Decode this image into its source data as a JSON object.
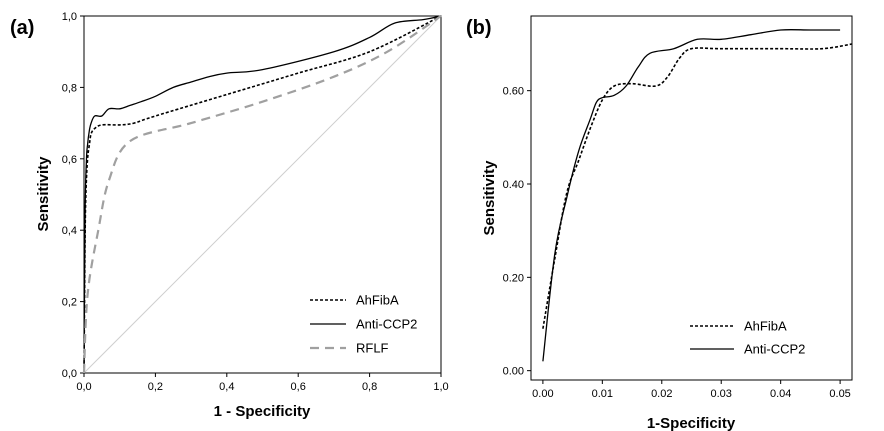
{
  "chart_data": [
    {
      "type": "line",
      "panel_label": "(a)",
      "xlabel": "1 - Specificity",
      "ylabel": "Sensitivity",
      "xlim": [
        0,
        1
      ],
      "ylim": [
        0,
        1
      ],
      "x_ticks": [
        "0,0",
        "0,2",
        "0,4",
        "0,6",
        "0,8",
        "1,0"
      ],
      "y_ticks": [
        "0,0",
        "0,2",
        "0,4",
        "0,6",
        "0,8",
        "1,0"
      ],
      "legend_position": "bottom-right",
      "series": [
        {
          "name": "AhFibA",
          "dash": "dotted",
          "color": "#000000",
          "points": [
            [
              0,
              0
            ],
            [
              0.003,
              0.38
            ],
            [
              0.006,
              0.52
            ],
            [
              0.01,
              0.6
            ],
            [
              0.015,
              0.64
            ],
            [
              0.02,
              0.67
            ],
            [
              0.03,
              0.685
            ],
            [
              0.05,
              0.695
            ],
            [
              0.1,
              0.695
            ],
            [
              0.14,
              0.7
            ],
            [
              0.2,
              0.72
            ],
            [
              0.4,
              0.78
            ],
            [
              0.6,
              0.84
            ],
            [
              0.8,
              0.9
            ],
            [
              1.0,
              1.0
            ]
          ]
        },
        {
          "name": "Anti-CCP2",
          "dash": "solid",
          "color": "#000000",
          "points": [
            [
              0,
              0
            ],
            [
              0.003,
              0.45
            ],
            [
              0.007,
              0.6
            ],
            [
              0.01,
              0.64
            ],
            [
              0.015,
              0.68
            ],
            [
              0.02,
              0.7
            ],
            [
              0.03,
              0.72
            ],
            [
              0.05,
              0.72
            ],
            [
              0.07,
              0.74
            ],
            [
              0.1,
              0.74
            ],
            [
              0.13,
              0.75
            ],
            [
              0.16,
              0.76
            ],
            [
              0.2,
              0.775
            ],
            [
              0.25,
              0.8
            ],
            [
              0.3,
              0.815
            ],
            [
              0.35,
              0.83
            ],
            [
              0.4,
              0.84
            ],
            [
              0.5,
              0.85
            ],
            [
              0.7,
              0.9
            ],
            [
              0.8,
              0.94
            ],
            [
              0.87,
              0.98
            ],
            [
              0.95,
              0.99
            ],
            [
              1.0,
              1.0
            ]
          ]
        },
        {
          "name": "RFLF",
          "dash": "dashed",
          "color": "#a0a0a0",
          "points": [
            [
              0,
              0
            ],
            [
              0.01,
              0.22
            ],
            [
              0.04,
              0.4
            ],
            [
              0.07,
              0.54
            ],
            [
              0.13,
              0.65
            ],
            [
              0.3,
              0.7
            ],
            [
              0.5,
              0.76
            ],
            [
              0.7,
              0.83
            ],
            [
              0.85,
              0.9
            ],
            [
              1.0,
              1.0
            ]
          ]
        }
      ]
    },
    {
      "type": "line",
      "panel_label": "(b)",
      "xlabel": "1-Specificity",
      "ylabel": "Sensitivity",
      "xlim": [
        -0.002,
        0.052
      ],
      "ylim": [
        -0.02,
        0.76
      ],
      "x_ticks": [
        "0.00",
        "0.01",
        "0.02",
        "0.03",
        "0.04",
        "0.05"
      ],
      "y_ticks": [
        "0.00",
        "0.20",
        "0.40",
        "0.60"
      ],
      "legend_position": "bottom-right",
      "series": [
        {
          "name": "AhFibA",
          "dash": "dotted",
          "color": "#000000",
          "points": [
            [
              0,
              0.09
            ],
            [
              0.002,
              0.24
            ],
            [
              0.004,
              0.38
            ],
            [
              0.006,
              0.45
            ],
            [
              0.008,
              0.52
            ],
            [
              0.01,
              0.58
            ],
            [
              0.012,
              0.61
            ],
            [
              0.015,
              0.615
            ],
            [
              0.019,
              0.61
            ],
            [
              0.021,
              0.63
            ],
            [
              0.023,
              0.67
            ],
            [
              0.025,
              0.69
            ],
            [
              0.03,
              0.69
            ],
            [
              0.04,
              0.69
            ],
            [
              0.047,
              0.69
            ],
            [
              0.052,
              0.7
            ]
          ]
        },
        {
          "name": "Anti-CCP2",
          "dash": "solid",
          "color": "#000000",
          "points": [
            [
              0,
              0.02
            ],
            [
              0.002,
              0.25
            ],
            [
              0.004,
              0.37
            ],
            [
              0.006,
              0.47
            ],
            [
              0.008,
              0.54
            ],
            [
              0.009,
              0.575
            ],
            [
              0.01,
              0.585
            ],
            [
              0.012,
              0.59
            ],
            [
              0.014,
              0.61
            ],
            [
              0.016,
              0.65
            ],
            [
              0.018,
              0.68
            ],
            [
              0.022,
              0.69
            ],
            [
              0.026,
              0.71
            ],
            [
              0.03,
              0.71
            ],
            [
              0.035,
              0.72
            ],
            [
              0.04,
              0.73
            ],
            [
              0.045,
              0.73
            ],
            [
              0.05,
              0.73
            ]
          ]
        }
      ]
    }
  ]
}
